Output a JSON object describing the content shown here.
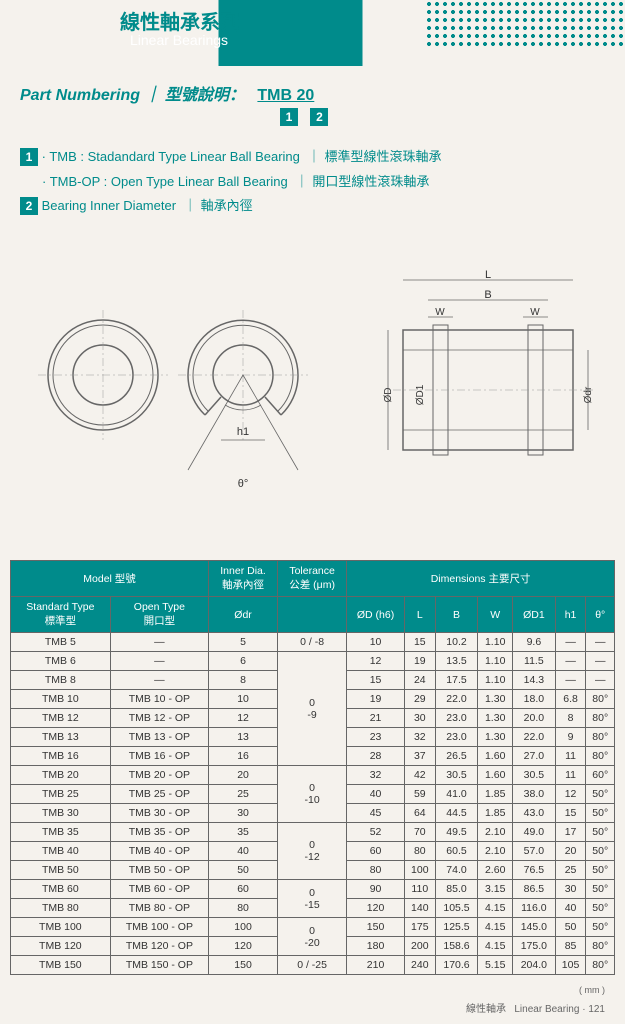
{
  "header": {
    "title_cn": "線性軸承系列",
    "title_en": "Linear Bearings"
  },
  "partNumbering": {
    "label": "Part Numbering",
    "sep": "｜",
    "desc_cn": "型號說明：",
    "model": "TMB 20"
  },
  "legend": {
    "item1": {
      "num": "1",
      "code": "TMB",
      "en": "Stadandard Type Linear Ball Bearing",
      "cn": "標準型線性滾珠軸承"
    },
    "item1b": {
      "code": "TMB-OP",
      "en": "Open Type Linear Ball Bearing",
      "cn": "開口型線性滾珠軸承"
    },
    "item2": {
      "num": "2",
      "en": "Bearing Inner Diameter",
      "cn": "軸承內徑"
    }
  },
  "diagram": {
    "h1_label": "h1",
    "theta_label": "θ°",
    "L_label": "L",
    "B_label": "B",
    "W_label": "W",
    "OD_label": "ØD",
    "OD1_label": "ØD1",
    "Odr_label": "Ødr"
  },
  "table": {
    "headers": {
      "model": "Model 型號",
      "standard": "Standard Type",
      "standard_cn": "標準型",
      "open": "Open Type",
      "open_cn": "開口型",
      "inner": "Inner Dia.",
      "inner_cn": "軸承內徑",
      "odr": "Ødr",
      "tol": "Tolerance",
      "tol_cn": "公差 (μm)",
      "dims": "Dimensions  主要尺寸",
      "od": "ØD (h6)",
      "L": "L",
      "B": "B",
      "W": "W",
      "OD1": "ØD1",
      "h1": "h1",
      "theta": "θ°"
    },
    "rows": [
      {
        "std": "TMB 5",
        "open": "—",
        "odr": "5",
        "tol": "0 / -8",
        "od": "10",
        "L": "15",
        "B": "10.2",
        "W": "1.10",
        "od1": "9.6",
        "h1": "—",
        "th": "—"
      },
      {
        "std": "TMB 6",
        "open": "—",
        "odr": "6",
        "tol": "",
        "od": "12",
        "L": "19",
        "B": "13.5",
        "W": "1.10",
        "od1": "11.5",
        "h1": "—",
        "th": "—"
      },
      {
        "std": "TMB 8",
        "open": "—",
        "odr": "8",
        "tol": "",
        "od": "15",
        "L": "24",
        "B": "17.5",
        "W": "1.10",
        "od1": "14.3",
        "h1": "—",
        "th": "—"
      },
      {
        "std": "TMB 10",
        "open": "TMB 10 - OP",
        "odr": "10",
        "tol": "0\n-9",
        "od": "19",
        "L": "29",
        "B": "22.0",
        "W": "1.30",
        "od1": "18.0",
        "h1": "6.8",
        "th": "80°"
      },
      {
        "std": "TMB 12",
        "open": "TMB 12 - OP",
        "odr": "12",
        "tol": "",
        "od": "21",
        "L": "30",
        "B": "23.0",
        "W": "1.30",
        "od1": "20.0",
        "h1": "8",
        "th": "80°"
      },
      {
        "std": "TMB 13",
        "open": "TMB 13 - OP",
        "odr": "13",
        "tol": "",
        "od": "23",
        "L": "32",
        "B": "23.0",
        "W": "1.30",
        "od1": "22.0",
        "h1": "9",
        "th": "80°"
      },
      {
        "std": "TMB 16",
        "open": "TMB 16 - OP",
        "odr": "16",
        "tol": "",
        "od": "28",
        "L": "37",
        "B": "26.5",
        "W": "1.60",
        "od1": "27.0",
        "h1": "11",
        "th": "80°"
      },
      {
        "std": "TMB 20",
        "open": "TMB 20 - OP",
        "odr": "20",
        "tol": "0\n-10",
        "od": "32",
        "L": "42",
        "B": "30.5",
        "W": "1.60",
        "od1": "30.5",
        "h1": "11",
        "th": "60°"
      },
      {
        "std": "TMB 25",
        "open": "TMB 25 - OP",
        "odr": "25",
        "tol": "",
        "od": "40",
        "L": "59",
        "B": "41.0",
        "W": "1.85",
        "od1": "38.0",
        "h1": "12",
        "th": "50°"
      },
      {
        "std": "TMB 30",
        "open": "TMB 30 - OP",
        "odr": "30",
        "tol": "",
        "od": "45",
        "L": "64",
        "B": "44.5",
        "W": "1.85",
        "od1": "43.0",
        "h1": "15",
        "th": "50°"
      },
      {
        "std": "TMB 35",
        "open": "TMB 35 - OP",
        "odr": "35",
        "tol": "0\n-12",
        "od": "52",
        "L": "70",
        "B": "49.5",
        "W": "2.10",
        "od1": "49.0",
        "h1": "17",
        "th": "50°"
      },
      {
        "std": "TMB 40",
        "open": "TMB 40 - OP",
        "odr": "40",
        "tol": "",
        "od": "60",
        "L": "80",
        "B": "60.5",
        "W": "2.10",
        "od1": "57.0",
        "h1": "20",
        "th": "50°"
      },
      {
        "std": "TMB 50",
        "open": "TMB 50 - OP",
        "odr": "50",
        "tol": "",
        "od": "80",
        "L": "100",
        "B": "74.0",
        "W": "2.60",
        "od1": "76.5",
        "h1": "25",
        "th": "50°"
      },
      {
        "std": "TMB 60",
        "open": "TMB 60 - OP",
        "odr": "60",
        "tol": "0\n-15",
        "od": "90",
        "L": "110",
        "B": "85.0",
        "W": "3.15",
        "od1": "86.5",
        "h1": "30",
        "th": "50°"
      },
      {
        "std": "TMB 80",
        "open": "TMB 80 - OP",
        "odr": "80",
        "tol": "",
        "od": "120",
        "L": "140",
        "B": "105.5",
        "W": "4.15",
        "od1": "116.0",
        "h1": "40",
        "th": "50°"
      },
      {
        "std": "TMB 100",
        "open": "TMB 100 - OP",
        "odr": "100",
        "tol": "0\n-20",
        "od": "150",
        "L": "175",
        "B": "125.5",
        "W": "4.15",
        "od1": "145.0",
        "h1": "50",
        "th": "50°"
      },
      {
        "std": "TMB 120",
        "open": "TMB 120 - OP",
        "odr": "120",
        "tol": "",
        "od": "180",
        "L": "200",
        "B": "158.6",
        "W": "4.15",
        "od1": "175.0",
        "h1": "85",
        "th": "80°"
      },
      {
        "std": "TMB 150",
        "open": "TMB 150 - OP",
        "odr": "150",
        "tol": "0 / -25",
        "od": "210",
        "L": "240",
        "B": "170.6",
        "W": "5.15",
        "od1": "204.0",
        "h1": "105",
        "th": "80°"
      }
    ]
  },
  "footer": {
    "unit": "( mm )",
    "text_cn": "線性軸承",
    "text_en": "Linear Bearing",
    "page": "121"
  }
}
